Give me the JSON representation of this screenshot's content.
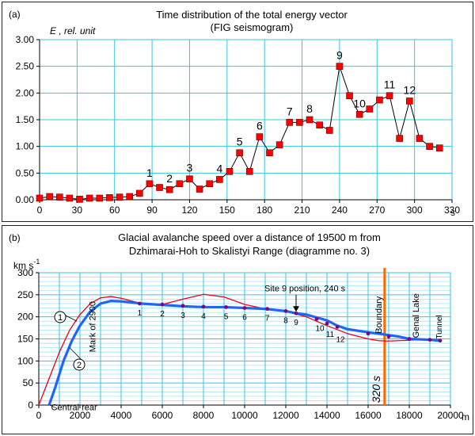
{
  "chart_data": [
    {
      "type": "line",
      "panel_label": "(a)",
      "title": "Time distribution of the total energy vector",
      "subtitle": "(FIG seismogram)",
      "ylabel": "E , rel. unit",
      "xunit": "s",
      "xlim": [
        0,
        330
      ],
      "ylim": [
        0,
        3
      ],
      "x_ticks": [
        "0",
        "30",
        "60",
        "90",
        "120",
        "150",
        "180",
        "210",
        "240",
        "270",
        "300",
        "330"
      ],
      "y_ticks": [
        "0.00",
        "0.50",
        "1.00",
        "1.50",
        "2.00",
        "2.50",
        "3.00"
      ],
      "grid": true,
      "series": [
        {
          "color": "#ff0000",
          "line_color": "#000000",
          "x": [
            0,
            8,
            16,
            24,
            32,
            40,
            48,
            56,
            64,
            72,
            80,
            88,
            96,
            104,
            112,
            120,
            128,
            136,
            144,
            152,
            160,
            168,
            176,
            184,
            192,
            200,
            208,
            216,
            224,
            232,
            240,
            248,
            256,
            264,
            272,
            280,
            288,
            296,
            304,
            312,
            320
          ],
          "y": [
            0.03,
            0.06,
            0.05,
            0.03,
            0.01,
            0.03,
            0.03,
            0.04,
            0.05,
            0.06,
            0.12,
            0.3,
            0.23,
            0.19,
            0.3,
            0.39,
            0.2,
            0.3,
            0.38,
            0.53,
            0.88,
            0.53,
            1.18,
            0.88,
            1.03,
            1.45,
            1.45,
            1.5,
            1.4,
            1.3,
            2.5,
            1.95,
            1.6,
            1.7,
            1.87,
            1.95,
            1.15,
            1.85,
            1.15,
            1.0,
            0.97
          ]
        }
      ],
      "annotations": [
        {
          "text": "1",
          "x": 88,
          "y": 0.3
        },
        {
          "text": "2",
          "x": 104,
          "y": 0.19
        },
        {
          "text": "3",
          "x": 120,
          "y": 0.39
        },
        {
          "text": "4",
          "x": 144,
          "y": 0.38
        },
        {
          "text": "5",
          "x": 160,
          "y": 0.88
        },
        {
          "text": "6",
          "x": 176,
          "y": 1.18
        },
        {
          "text": "7",
          "x": 200,
          "y": 1.45
        },
        {
          "text": "8",
          "x": 216,
          "y": 1.5
        },
        {
          "text": "9",
          "x": 240,
          "y": 2.5
        },
        {
          "text": "10",
          "x": 256,
          "y": 1.6
        },
        {
          "text": "11",
          "x": 280,
          "y": 1.95
        },
        {
          "text": "12",
          "x": 296,
          "y": 1.85
        }
      ]
    },
    {
      "type": "line",
      "panel_label": "(b)",
      "title": "Glacial avalanche speed over a distance of 19500 m from",
      "subtitle": "Dzhimarai-Hoh to Skalistyi Range (diagramme no. 3)",
      "ylabel_base": "km s",
      "ylabel_exp": "-1",
      "xunit": "m",
      "xlim": [
        0,
        20000
      ],
      "ylim": [
        0,
        300
      ],
      "x_ticks": [
        "0",
        "2000",
        "4000",
        "6000",
        "8000",
        "10000",
        "12000",
        "14000",
        "16000",
        "18000",
        "20000"
      ],
      "y_ticks": [
        "0",
        "50",
        "100",
        "150",
        "200",
        "250",
        "300"
      ],
      "grid": true,
      "series": [
        {
          "name": "1",
          "color": "#e8001a",
          "x": [
            0,
            500,
            1000,
            1500,
            2000,
            2500,
            3000,
            3500,
            4000,
            4500,
            5000,
            6000,
            7000,
            8000,
            9000,
            10000,
            11000,
            12000,
            13000,
            14000,
            15000,
            16000,
            16500,
            17000,
            18000,
            19000,
            19500
          ],
          "y": [
            0,
            60,
            120,
            170,
            205,
            230,
            243,
            246,
            242,
            236,
            230,
            228,
            240,
            251,
            245,
            228,
            218,
            212,
            200,
            180,
            162,
            150,
            146,
            145,
            147,
            150,
            145
          ]
        },
        {
          "name": "2",
          "color": "#1e64ff",
          "x": [
            500,
            800,
            1200,
            1600,
            2000,
            2500,
            3000,
            3500,
            4000,
            5000,
            6000,
            7000,
            8000,
            9000,
            10000,
            11000,
            12000,
            12500,
            13000,
            14000,
            14500,
            15000,
            16000,
            16800,
            17500,
            18000,
            19000,
            19500
          ],
          "y": [
            0,
            40,
            100,
            145,
            180,
            212,
            230,
            236,
            235,
            230,
            227,
            224,
            222,
            222,
            220,
            218,
            213,
            208,
            205,
            192,
            180,
            172,
            165,
            160,
            155,
            150,
            148,
            146
          ]
        }
      ],
      "markers": {
        "color": "#7a0a7a",
        "x": [
          4900,
          6000,
          7000,
          8000,
          9100,
          10000,
          11100,
          12000,
          12500,
          13500,
          14000,
          14500,
          16000,
          17000,
          18000,
          19000,
          19500
        ],
        "y": [
          230,
          228,
          225,
          223,
          222,
          220,
          218,
          213,
          208,
          195,
          185,
          177,
          162,
          155,
          150,
          148,
          146
        ]
      },
      "point_labels": [
        {
          "text": "1",
          "x": 4900,
          "y": 230
        },
        {
          "text": "2",
          "x": 6000,
          "y": 228
        },
        {
          "text": "3",
          "x": 7000,
          "y": 225
        },
        {
          "text": "4",
          "x": 8000,
          "y": 223
        },
        {
          "text": "5",
          "x": 9100,
          "y": 222
        },
        {
          "text": "6",
          "x": 10000,
          "y": 220
        },
        {
          "text": "7",
          "x": 11100,
          "y": 218
        },
        {
          "text": "8",
          "x": 12000,
          "y": 213
        },
        {
          "text": "9",
          "x": 12500,
          "y": 208
        },
        {
          "text": "10",
          "x": 13500,
          "y": 195
        },
        {
          "text": "11",
          "x": 14000,
          "y": 185
        },
        {
          "text": "12",
          "x": 14500,
          "y": 177
        }
      ],
      "annotations": {
        "site9": {
          "text": "Site 9 position, 240 s",
          "x": 12500,
          "y": 208
        },
        "mark2900": "Mark of 2900",
        "central_rear": "Central rear",
        "boundary": "Boundary",
        "genal_lake": "Genal Lake",
        "tunnel": "Tunnel",
        "time_320": "320 s"
      },
      "vertical_line": {
        "x": 16800,
        "color": "#ff6a00"
      }
    }
  ]
}
